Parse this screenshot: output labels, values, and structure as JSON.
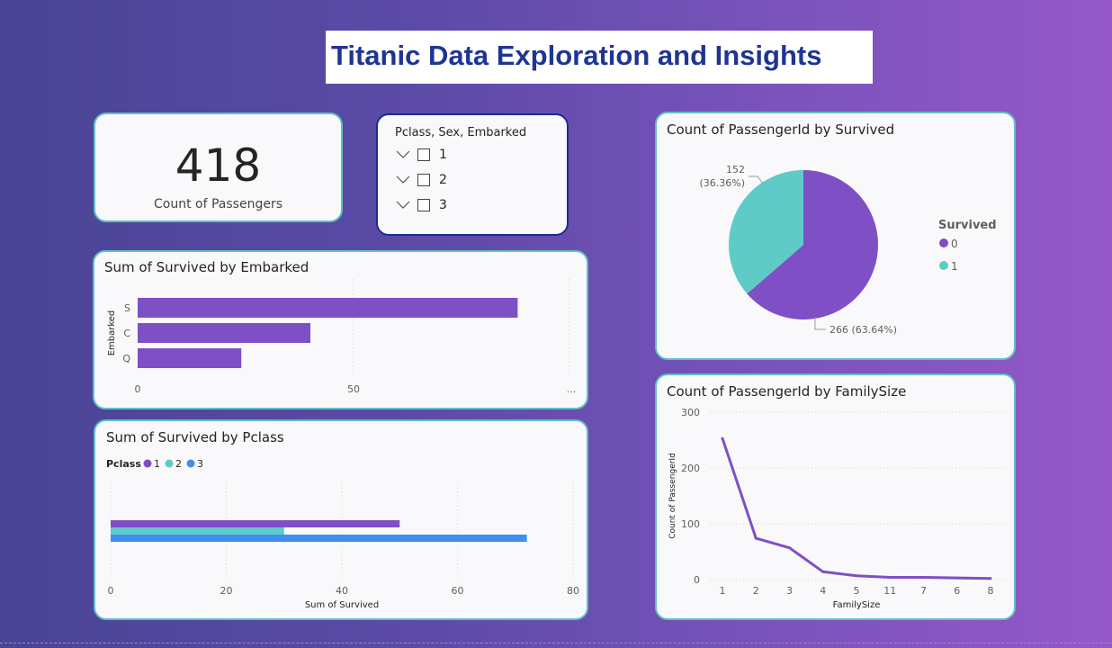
{
  "dashboard": {
    "title": "Titanic Data Exploration and Insights"
  },
  "kpi": {
    "value": "418",
    "label": "Count of Passengers"
  },
  "slicer": {
    "title": "Pclass, Sex, Embarked",
    "items": [
      "1",
      "2",
      "3"
    ]
  },
  "colors": {
    "purple": "#7f4fc6",
    "teal": "#5ecbc6",
    "blue": "#3f8ef0",
    "card_border": "#5fc0c5"
  },
  "chart_data": [
    {
      "type": "bar",
      "title": "Sum of Survived by Embarked",
      "ylabel": "Embarked",
      "categories": [
        "S",
        "C",
        "Q"
      ],
      "values": [
        88,
        40,
        24
      ],
      "xlim": [
        0,
        100
      ],
      "x_ticks": [
        "0",
        "50",
        "..."
      ],
      "color": "#7f4fc6",
      "grid": true
    },
    {
      "type": "bar",
      "title": "Sum of Survived by Pclass",
      "xlabel": "Sum of Survived",
      "legend_title": "Pclass",
      "legend_position": "top-left",
      "series": [
        {
          "name": "1",
          "values": [
            50
          ],
          "color": "#7f4fc6"
        },
        {
          "name": "2",
          "values": [
            30
          ],
          "color": "#5ecbc6"
        },
        {
          "name": "3",
          "values": [
            72
          ],
          "color": "#3f8ef0"
        }
      ],
      "xlim": [
        0,
        80
      ],
      "x_ticks": [
        "0",
        "20",
        "40",
        "60",
        "80"
      ],
      "grid": true
    },
    {
      "type": "pie",
      "title": "Count of PassengerId by Survived",
      "legend_title": "Survived",
      "legend_position": "right",
      "slices": [
        {
          "label": "0",
          "value": 266,
          "display": "266 (63.64%)",
          "color": "#7f4fc6"
        },
        {
          "label": "1",
          "value": 152,
          "display_value": "152",
          "display_pct": "(36.36%)",
          "color": "#5ecbc6"
        }
      ]
    },
    {
      "type": "line",
      "title": "Count of PassengerId by FamilySize",
      "xlabel": "FamilySize",
      "ylabel": "Count of PassengerId",
      "categories": [
        "1",
        "2",
        "3",
        "4",
        "5",
        "11",
        "7",
        "6",
        "8"
      ],
      "values": [
        253,
        74,
        57,
        14,
        7,
        4,
        4,
        3,
        2
      ],
      "ylim": [
        0,
        300
      ],
      "y_ticks": [
        "0",
        "100",
        "200",
        "300"
      ],
      "color": "#7f4fc6",
      "grid": true
    }
  ]
}
